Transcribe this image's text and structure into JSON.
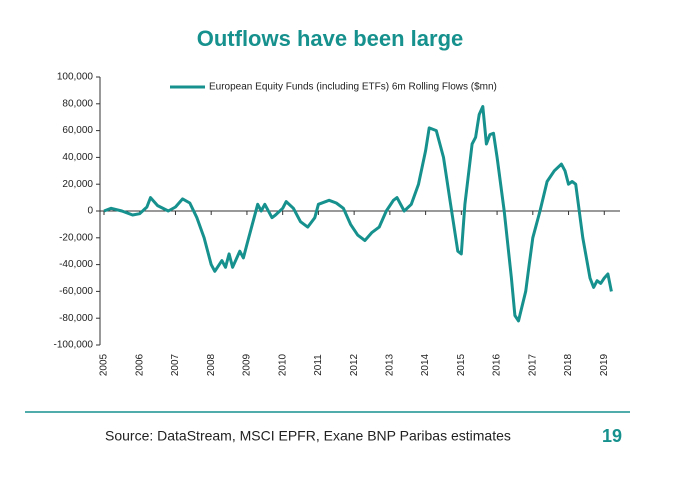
{
  "chart_data": {
    "type": "line",
    "title": "Outflows have been large",
    "x": [
      2005.0,
      2005.2,
      2005.5,
      2005.8,
      2006.0,
      2006.2,
      2006.3,
      2006.5,
      2006.8,
      2007.0,
      2007.2,
      2007.4,
      2007.6,
      2007.8,
      2008.0,
      2008.1,
      2008.3,
      2008.4,
      2008.5,
      2008.6,
      2008.8,
      2008.9,
      2009.0,
      2009.2,
      2009.3,
      2009.4,
      2009.5,
      2009.7,
      2009.8,
      2010.0,
      2010.1,
      2010.3,
      2010.5,
      2010.7,
      2010.9,
      2011.0,
      2011.3,
      2011.5,
      2011.7,
      2011.9,
      2012.1,
      2012.3,
      2012.5,
      2012.7,
      2012.9,
      2013.1,
      2013.2,
      2013.4,
      2013.6,
      2013.8,
      2014.0,
      2014.1,
      2014.3,
      2014.5,
      2014.7,
      2014.9,
      2015.0,
      2015.1,
      2015.3,
      2015.4,
      2015.5,
      2015.6,
      2015.7,
      2015.8,
      2015.9,
      2016.0,
      2016.2,
      2016.4,
      2016.5,
      2016.6,
      2016.8,
      2016.9,
      2017.0,
      2017.2,
      2017.4,
      2017.6,
      2017.8,
      2017.9,
      2018.0,
      2018.1,
      2018.2,
      2018.4,
      2018.6,
      2018.7,
      2018.8,
      2018.9,
      2019.0,
      2019.1,
      2019.2
    ],
    "series": [
      {
        "name": "European Equity Funds (including ETFs) 6m Rolling Flows ($mn)",
        "color": "#17918d",
        "values": [
          0,
          2000,
          0,
          -3000,
          -2000,
          3000,
          10000,
          4000,
          0,
          3000,
          9000,
          6000,
          -5000,
          -20000,
          -40000,
          -45000,
          -37000,
          -42000,
          -32000,
          -42000,
          -30000,
          -35000,
          -25000,
          -5000,
          5000,
          0,
          5000,
          -5000,
          -3000,
          2000,
          7000,
          2000,
          -8000,
          -12000,
          -5000,
          5000,
          8000,
          6000,
          2000,
          -10000,
          -18000,
          -22000,
          -16000,
          -12000,
          0,
          8000,
          10000,
          0,
          5000,
          20000,
          45000,
          62000,
          60000,
          40000,
          5000,
          -30000,
          -32000,
          5000,
          50000,
          55000,
          72000,
          78000,
          50000,
          57000,
          58000,
          40000,
          0,
          -50000,
          -78000,
          -82000,
          -60000,
          -40000,
          -20000,
          0,
          22000,
          30000,
          35000,
          30000,
          20000,
          22000,
          20000,
          -20000,
          -50000,
          -57000,
          -52000,
          -54000,
          -50000,
          -47000,
          -60000
        ]
      }
    ],
    "xlim": [
      2005,
      2019.3
    ],
    "xticks": [
      2005,
      2006,
      2007,
      2008,
      2009,
      2010,
      2011,
      2012,
      2013,
      2014,
      2015,
      2016,
      2017,
      2018,
      2019
    ],
    "ylim": [
      -100000,
      100000
    ],
    "yticks": [
      {
        "value": -100000,
        "label": "-100,000"
      },
      {
        "value": -80000,
        "label": "-80,000"
      },
      {
        "value": -60000,
        "label": "-60,000"
      },
      {
        "value": -40000,
        "label": "-40,000"
      },
      {
        "value": -20000,
        "label": "-20,000"
      },
      0,
      {
        "value": 20000,
        "label": "20,000"
      },
      {
        "value": 40000,
        "label": "40,000"
      },
      {
        "value": 60000,
        "label": "60,000"
      },
      {
        "value": 80000,
        "label": "80,000"
      },
      {
        "value": 100000,
        "label": "100,000"
      }
    ]
  },
  "footer": {
    "source": "Source: DataStream, MSCI EPFR, Exane BNP Paribas estimates",
    "page": "19"
  }
}
